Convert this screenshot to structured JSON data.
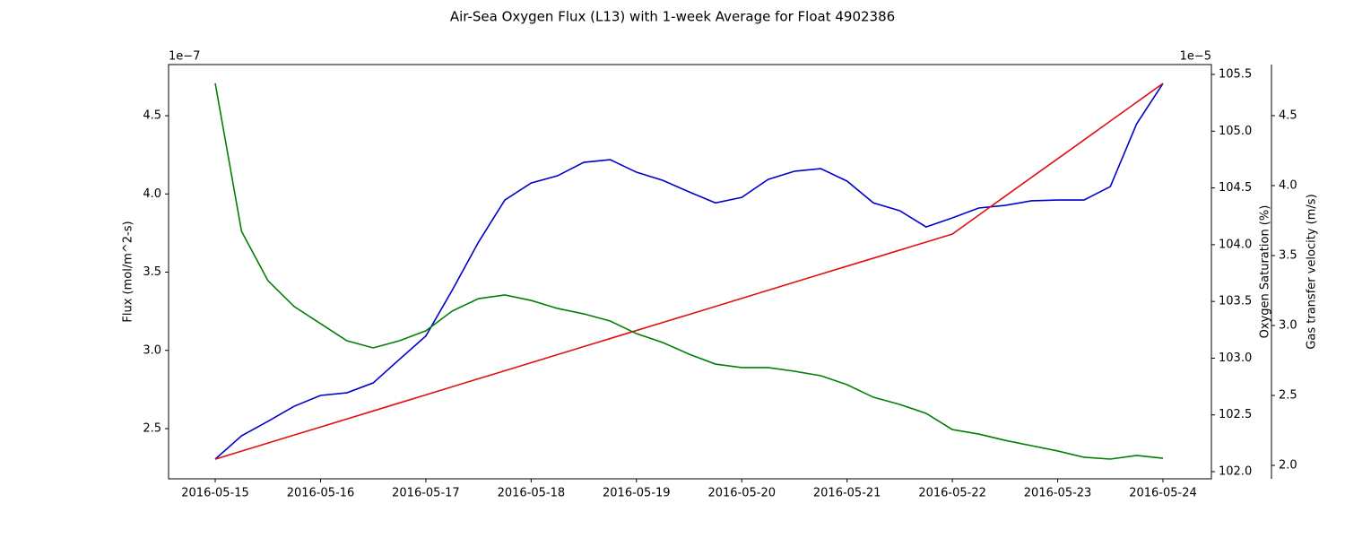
{
  "chart_data": {
    "type": "line",
    "title": "Air-Sea Oxygen Flux (L13) with 1-week Average for Float 4902386",
    "ylabel": "Flux (mol/m^2-s)",
    "y2label": "Oxygen Saturation (%)",
    "y3label": "Gas transfer velocity (m/s)",
    "yoffset": "1e−7",
    "y2offset": "1e−5",
    "x": [
      "2016-05-15T00:00",
      "2016-05-15T06:00",
      "2016-05-15T12:00",
      "2016-05-15T18:00",
      "2016-05-16T00:00",
      "2016-05-16T06:00",
      "2016-05-16T12:00",
      "2016-05-16T18:00",
      "2016-05-17T00:00",
      "2016-05-17T06:00",
      "2016-05-17T12:00",
      "2016-05-17T18:00",
      "2016-05-18T00:00",
      "2016-05-18T06:00",
      "2016-05-18T12:00",
      "2016-05-18T18:00",
      "2016-05-19T00:00",
      "2016-05-19T06:00",
      "2016-05-19T12:00",
      "2016-05-19T18:00",
      "2016-05-20T00:00",
      "2016-05-20T06:00",
      "2016-05-20T12:00",
      "2016-05-20T18:00",
      "2016-05-21T00:00",
      "2016-05-21T06:00",
      "2016-05-21T12:00",
      "2016-05-21T18:00",
      "2016-05-22T00:00",
      "2016-05-22T06:00",
      "2016-05-22T12:00",
      "2016-05-22T18:00",
      "2016-05-23T00:00",
      "2016-05-23T06:00",
      "2016-05-23T12:00",
      "2016-05-23T18:00",
      "2016-05-24T00:00"
    ],
    "xlim": [
      "2016-05-14T13:22",
      "2016-05-24T11:02"
    ],
    "xticks": [
      "2016-05-15",
      "2016-05-16",
      "2016-05-17",
      "2016-05-18",
      "2016-05-19",
      "2016-05-20",
      "2016-05-21",
      "2016-05-22",
      "2016-05-23",
      "2016-05-24"
    ],
    "ylim": [
      2.179,
      4.827
    ],
    "yticks": [
      2.5,
      {
        "value": 3,
        "label": "3.0"
      },
      3.5,
      {
        "value": 4,
        "label": "4.0"
      },
      4.5
    ],
    "y2lim": [
      101.937,
      105.587
    ],
    "y2ticks": [
      {
        "value": 102,
        "label": "102.0"
      },
      102.5,
      {
        "value": 103,
        "label": "103.0"
      },
      103.5,
      {
        "value": 104,
        "label": "104.0"
      },
      104.5,
      {
        "value": 105,
        "label": "105.0"
      },
      105.5
    ],
    "y3lim": [
      1.904,
      4.865
    ],
    "y3ticks": [
      {
        "value": 2,
        "label": "2.0"
      },
      2.5,
      {
        "value": 3,
        "label": "3.0"
      },
      3.5,
      {
        "value": 4,
        "label": "4.0"
      },
      4.5
    ],
    "series": [
      {
        "name": "Flux",
        "color": "#0000cc",
        "axis": "y",
        "values": [
          2.305,
          2.454,
          2.546,
          2.643,
          2.712,
          2.729,
          2.792,
          2.943,
          3.092,
          3.384,
          3.692,
          3.961,
          4.07,
          4.116,
          4.202,
          4.219,
          4.139,
          4.087,
          4.013,
          3.943,
          3.978,
          4.093,
          4.145,
          4.162,
          4.082,
          3.943,
          3.893,
          3.789,
          3.847,
          3.91,
          3.927,
          3.956,
          3.961,
          3.961,
          4.047,
          4.448,
          4.706
        ]
      },
      {
        "name": "Oxygen Saturation",
        "color": "#e01010",
        "axis": "y2",
        "values": [
          102.11,
          102.181,
          102.252,
          102.323,
          102.393,
          102.464,
          102.535,
          102.606,
          102.677,
          102.748,
          102.819,
          102.889,
          102.96,
          103.031,
          103.102,
          103.173,
          103.244,
          103.315,
          103.385,
          103.456,
          103.527,
          103.598,
          103.669,
          103.74,
          103.811,
          103.881,
          103.952,
          104.023,
          104.094,
          104.26,
          104.426,
          104.592,
          104.757,
          104.923,
          105.089,
          105.255,
          105.421
        ]
      },
      {
        "name": "Gas transfer velocity",
        "color": "#008000",
        "axis": "y3",
        "values": [
          4.731,
          3.673,
          3.321,
          3.135,
          3.013,
          2.891,
          2.84,
          2.891,
          2.962,
          3.103,
          3.192,
          3.218,
          3.179,
          3.122,
          3.083,
          3.032,
          2.942,
          2.878,
          2.795,
          2.724,
          2.699,
          2.699,
          2.673,
          2.641,
          2.577,
          2.487,
          2.436,
          2.372,
          2.256,
          2.224,
          2.179,
          2.141,
          2.103,
          2.058,
          2.045,
          2.071,
          2.051
        ]
      }
    ]
  }
}
